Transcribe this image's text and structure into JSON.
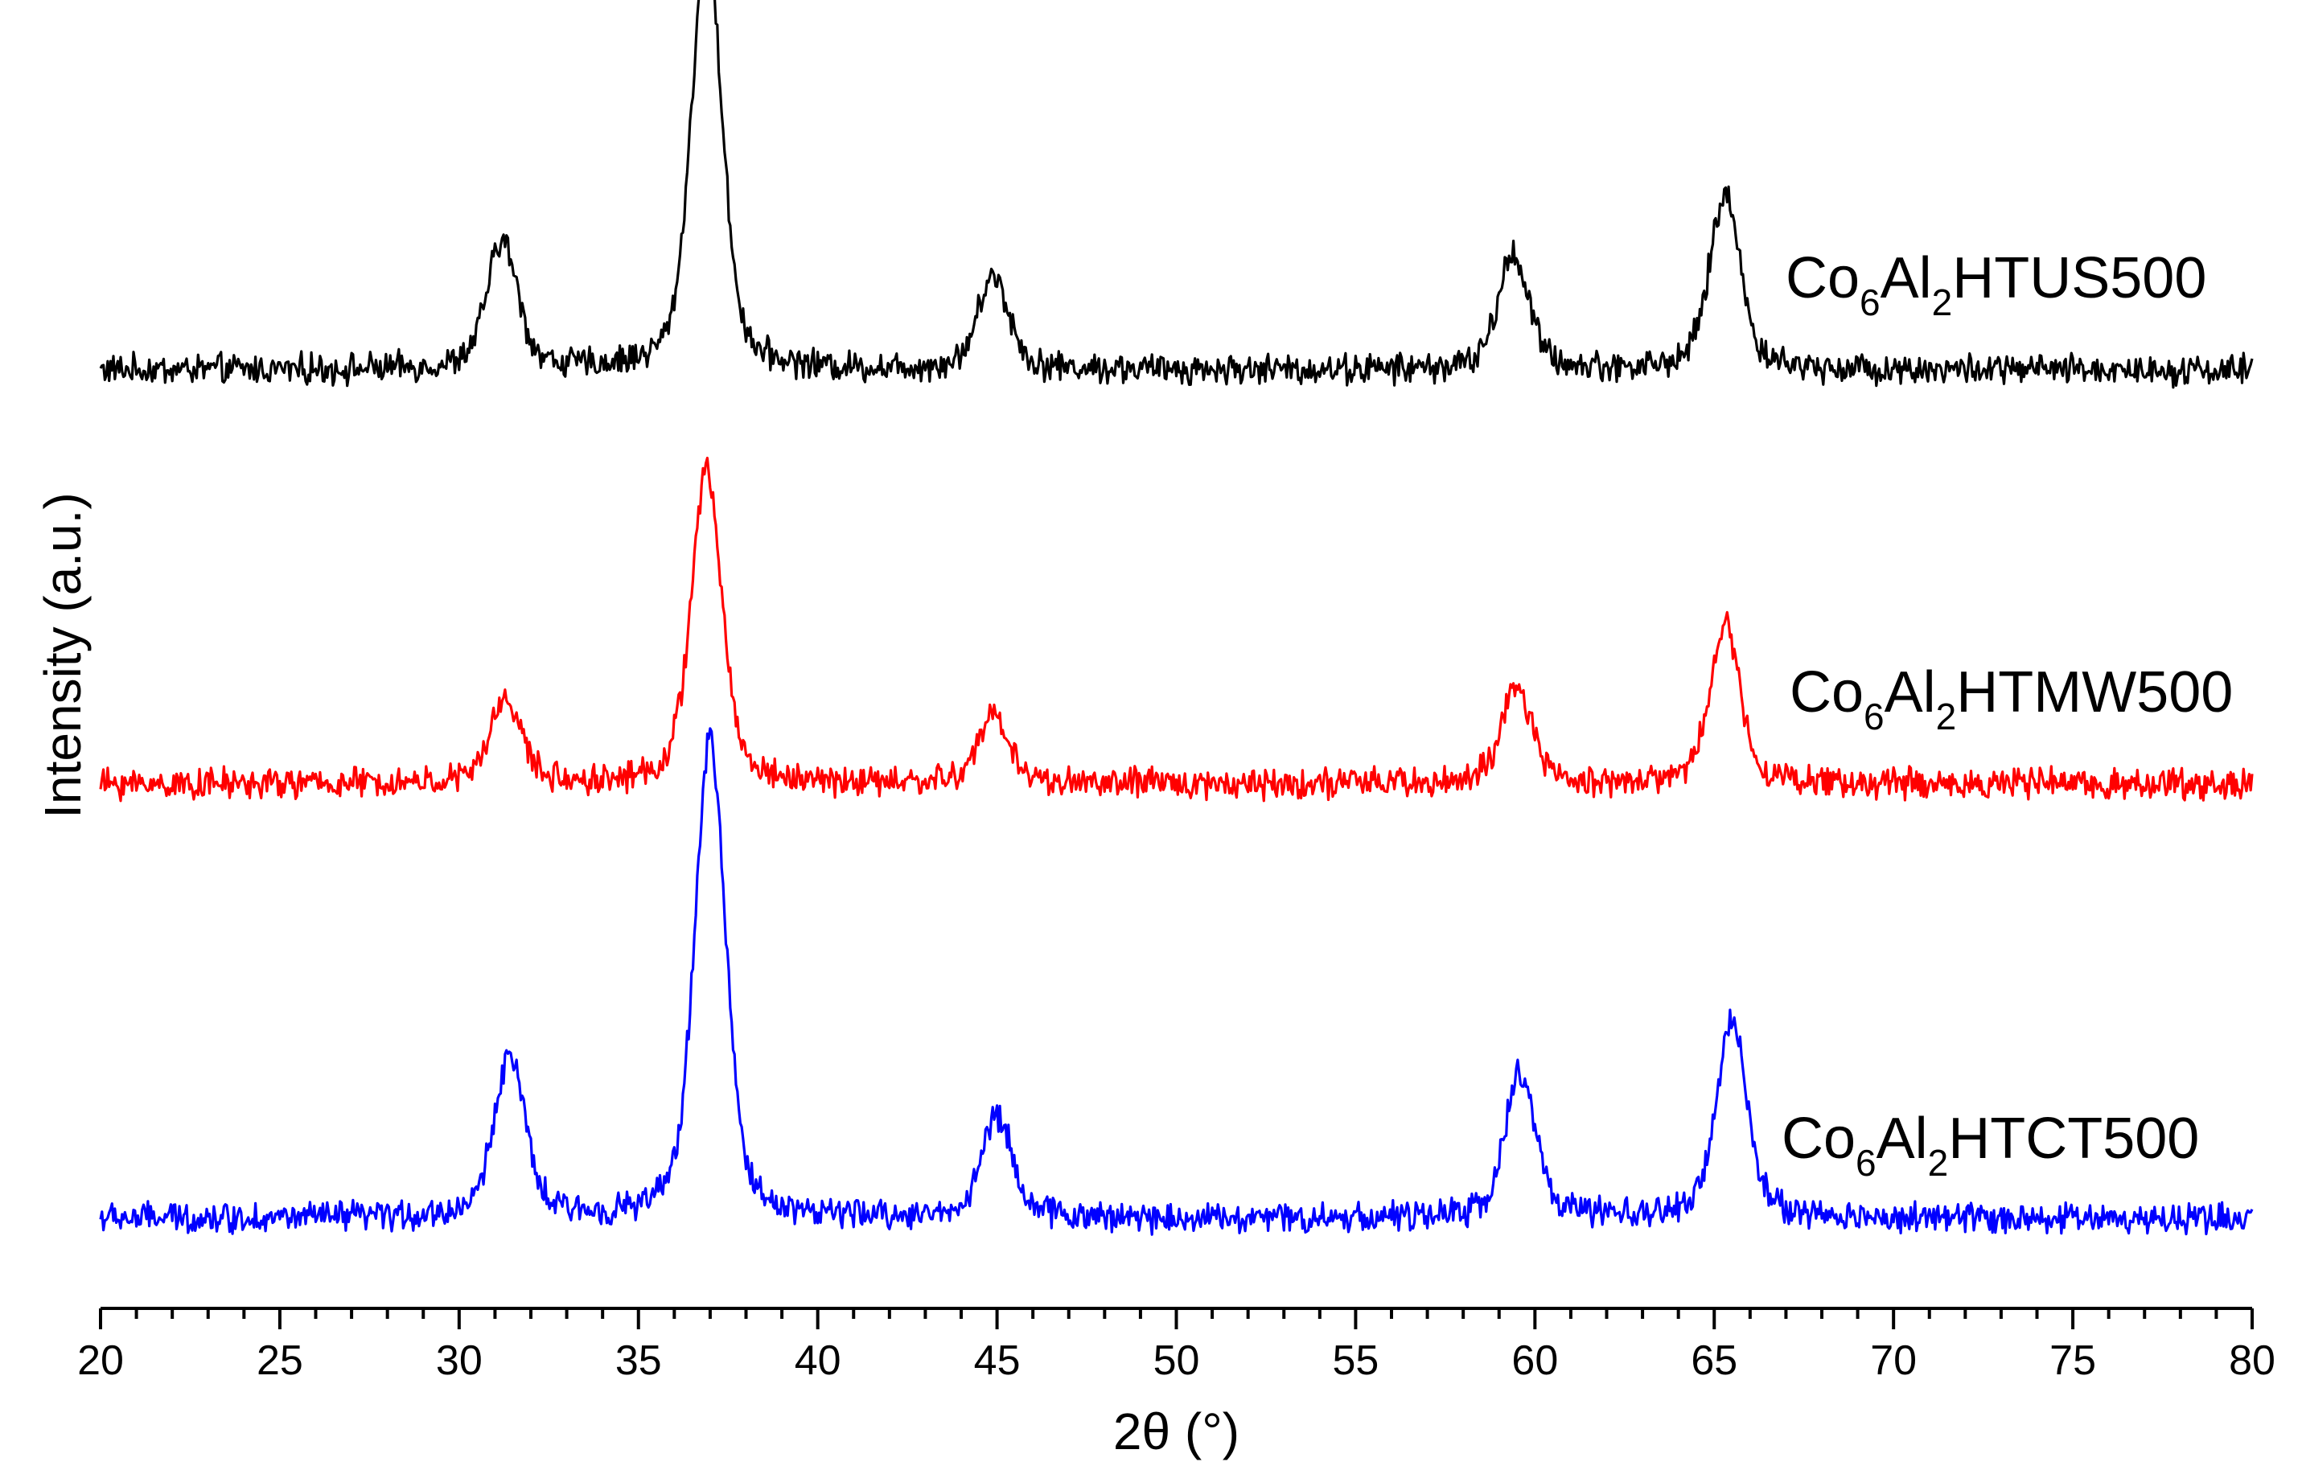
{
  "chart_data": {
    "type": "line",
    "title": "",
    "xlabel": "2θ (°)",
    "ylabel": "Intensity (a.u.)",
    "xlim": [
      20,
      80
    ],
    "xticks": [
      "20",
      "25",
      "30",
      "35",
      "40",
      "45",
      "50",
      "55",
      "60",
      "65",
      "70",
      "75",
      "80"
    ],
    "grid": false,
    "legend": "inline labels at right of each curve",
    "series": [
      {
        "name": "Co6Al2HTUS500",
        "label_parts": {
          "a": "Co",
          "s1": "6",
          "b": "Al",
          "s2": "2",
          "c": "HTUS500"
        },
        "color": "#000000",
        "offset": 2.0,
        "baseline": 0.06,
        "peaks": [
          {
            "x": 31.2,
            "height": 0.3
          },
          {
            "x": 36.9,
            "height": 1.0
          },
          {
            "x": 44.9,
            "height": 0.22
          },
          {
            "x": 59.4,
            "height": 0.27
          },
          {
            "x": 65.3,
            "height": 0.41
          }
        ]
      },
      {
        "name": "Co6Al2HTMW500",
        "label_parts": {
          "a": "Co",
          "s1": "6",
          "b": "Al",
          "s2": "2",
          "c": "HTMW500"
        },
        "color": "#ff0000",
        "offset": 1.0,
        "baseline": 0.06,
        "peaks": [
          {
            "x": 31.3,
            "height": 0.2
          },
          {
            "x": 36.9,
            "height": 0.73
          },
          {
            "x": 44.9,
            "height": 0.16
          },
          {
            "x": 59.5,
            "height": 0.22
          },
          {
            "x": 65.3,
            "height": 0.37
          }
        ]
      },
      {
        "name": "Co6Al2HTCT500",
        "label_parts": {
          "a": "Co",
          "s1": "6",
          "b": "Al",
          "s2": "2",
          "c": "HTCT500"
        },
        "color": "#0000ff",
        "offset": 0.0,
        "baseline": 0.06,
        "peaks": [
          {
            "x": 31.4,
            "height": 0.38
          },
          {
            "x": 37.0,
            "height": 1.12
          },
          {
            "x": 45.0,
            "height": 0.24
          },
          {
            "x": 59.6,
            "height": 0.34
          },
          {
            "x": 65.5,
            "height": 0.46
          }
        ]
      }
    ]
  }
}
